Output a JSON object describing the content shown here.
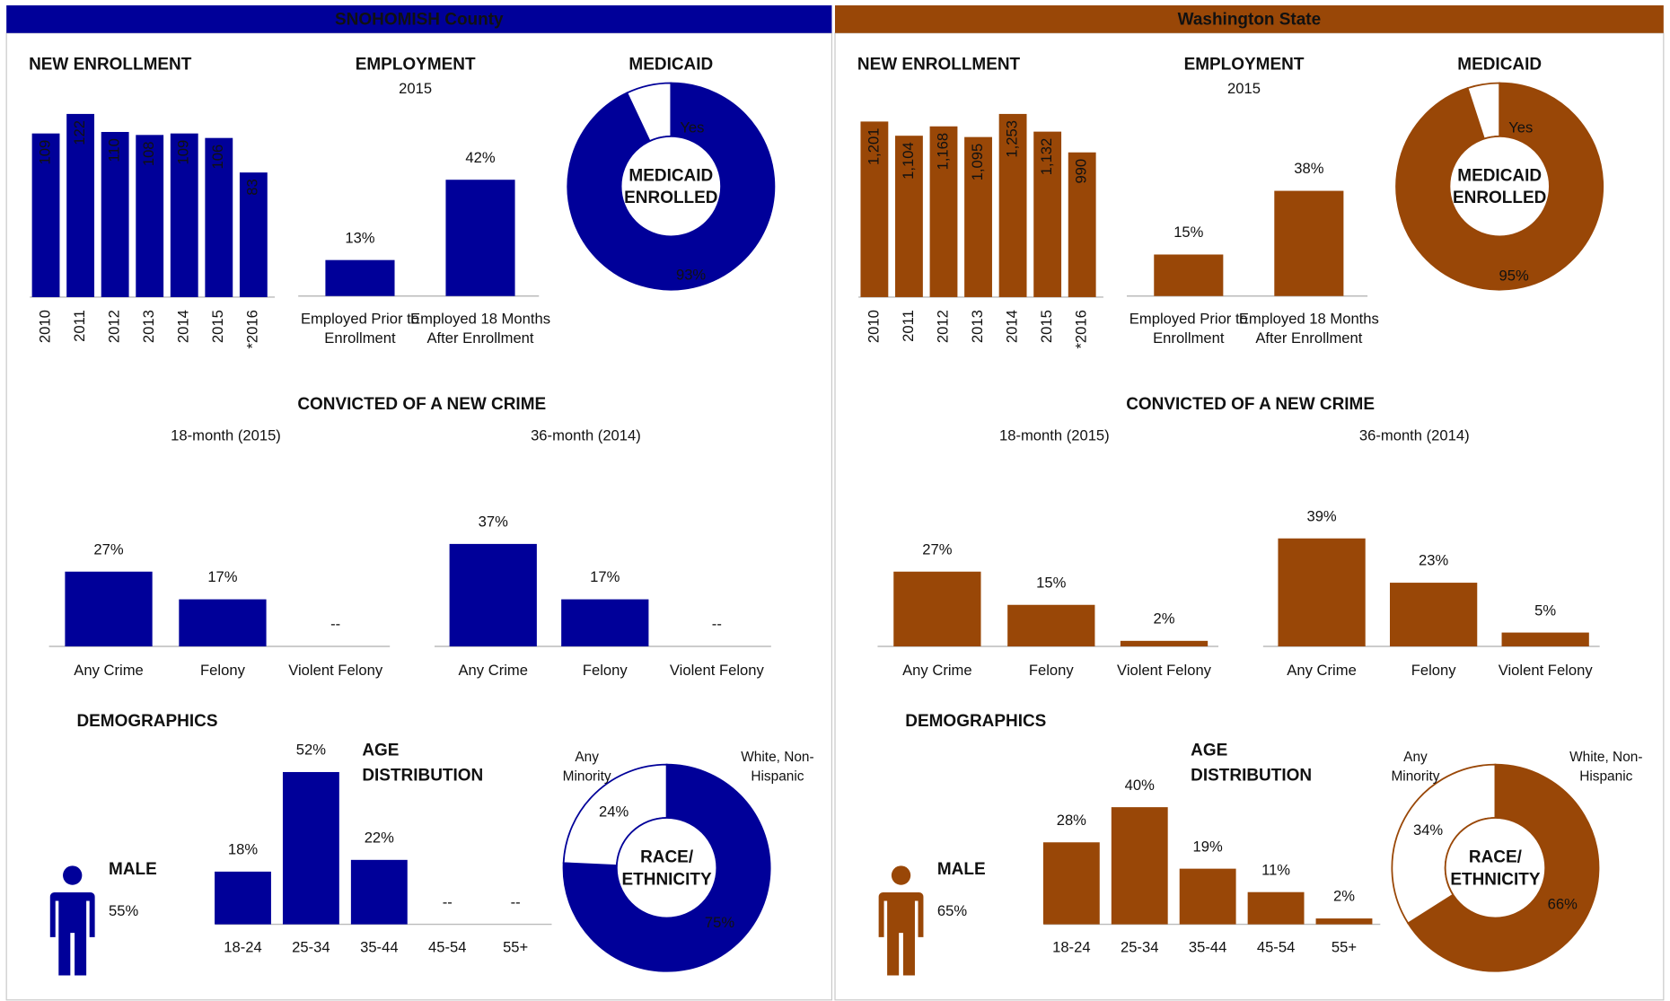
{
  "panels": [
    {
      "title": "SNOHOMISH County",
      "color": "#000099",
      "chart_data": [
        {
          "type": "bar",
          "title": "NEW ENROLLMENT",
          "categories": [
            "2010",
            "2011",
            "2012",
            "2013",
            "2014",
            "2015",
            "*2016"
          ],
          "values": [
            109,
            122,
            110,
            108,
            109,
            106,
            83
          ],
          "color": "#000099"
        },
        {
          "type": "bar",
          "title": "EMPLOYMENT",
          "subtitle": "2015",
          "categories": [
            "Employed Prior to Enrollment",
            "Employed 18 Months After Enrollment"
          ],
          "values": [
            13,
            42
          ],
          "value_labels": [
            "13%",
            "42%"
          ],
          "color": "#000099"
        },
        {
          "type": "donut",
          "title": "MEDICAID",
          "center_label": [
            "MEDICAID",
            "ENROLLED"
          ],
          "categories": [
            "Yes",
            null
          ],
          "values": [
            93,
            7
          ],
          "value_labels": [
            "93%",
            null
          ],
          "colors": [
            "#000099",
            "#ffffff"
          ]
        },
        {
          "type": "bar",
          "title": "CONVICTED OF A NEW CRIME",
          "subtitle": "18-month (2015)",
          "categories": [
            "Any Crime",
            "Felony",
            "Violent Felony"
          ],
          "values": [
            27,
            17,
            null
          ],
          "value_labels": [
            "27%",
            "17%",
            "--"
          ],
          "color": "#000099"
        },
        {
          "type": "bar",
          "subtitle": "36-month (2014)",
          "categories": [
            "Any Crime",
            "Felony",
            "Violent Felony"
          ],
          "values": [
            37,
            17,
            null
          ],
          "value_labels": [
            "37%",
            "17%",
            "--"
          ],
          "color": "#000099"
        },
        {
          "type": "stat",
          "title": "DEMOGRAPHICS",
          "label": "MALE",
          "value": "55%",
          "color": "#000099"
        },
        {
          "type": "bar",
          "title": [
            "AGE",
            "DISTRIBUTION"
          ],
          "categories": [
            "18-24",
            "25-34",
            "35-44",
            "45-54",
            "55+"
          ],
          "values": [
            18,
            52,
            22,
            null,
            null
          ],
          "value_labels": [
            "18%",
            "52%",
            "22%",
            "--",
            "--"
          ],
          "color": "#000099"
        },
        {
          "type": "donut",
          "center_label": [
            "RACE/",
            "ETHNICITY"
          ],
          "categories": [
            "White, Non-Hispanic",
            "Any Minority"
          ],
          "values": [
            75,
            24
          ],
          "value_labels": [
            "75%",
            "24%"
          ],
          "colors": [
            "#000099",
            "#ffffff"
          ]
        }
      ]
    },
    {
      "title": "Washington State",
      "color": "#994707",
      "chart_data": [
        {
          "type": "bar",
          "title": "NEW ENROLLMENT",
          "categories": [
            "2010",
            "2011",
            "2012",
            "2013",
            "2014",
            "2015",
            "*2016"
          ],
          "values": [
            1201,
            1104,
            1168,
            1095,
            1253,
            1132,
            990
          ],
          "value_labels": [
            "1,201",
            "1,104",
            "1,168",
            "1,095",
            "1,253",
            "1,132",
            "990"
          ],
          "color": "#994707"
        },
        {
          "type": "bar",
          "title": "EMPLOYMENT",
          "subtitle": "2015",
          "categories": [
            "Employed Prior to Enrollment",
            "Employed 18 Months After Enrollment"
          ],
          "values": [
            15,
            38
          ],
          "value_labels": [
            "15%",
            "38%"
          ],
          "color": "#994707"
        },
        {
          "type": "donut",
          "title": "MEDICAID",
          "center_label": [
            "MEDICAID",
            "ENROLLED"
          ],
          "categories": [
            "Yes",
            null
          ],
          "values": [
            95,
            5
          ],
          "value_labels": [
            "95%",
            null
          ],
          "colors": [
            "#994707",
            "#ffffff"
          ]
        },
        {
          "type": "bar",
          "title": "CONVICTED OF A NEW CRIME",
          "subtitle": "18-month (2015)",
          "categories": [
            "Any Crime",
            "Felony",
            "Violent Felony"
          ],
          "values": [
            27,
            15,
            2
          ],
          "value_labels": [
            "27%",
            "15%",
            "2%"
          ],
          "color": "#994707"
        },
        {
          "type": "bar",
          "subtitle": "36-month (2014)",
          "categories": [
            "Any Crime",
            "Felony",
            "Violent Felony"
          ],
          "values": [
            39,
            23,
            5
          ],
          "value_labels": [
            "39%",
            "23%",
            "5%"
          ],
          "color": "#994707"
        },
        {
          "type": "stat",
          "title": "DEMOGRAPHICS",
          "label": "MALE",
          "value": "65%",
          "color": "#994707"
        },
        {
          "type": "bar",
          "title": [
            "AGE",
            "DISTRIBUTION"
          ],
          "categories": [
            "18-24",
            "25-34",
            "35-44",
            "45-54",
            "55+"
          ],
          "values": [
            28,
            40,
            19,
            11,
            2
          ],
          "value_labels": [
            "28%",
            "40%",
            "19%",
            "11%",
            "2%"
          ],
          "color": "#994707"
        },
        {
          "type": "donut",
          "center_label": [
            "RACE/",
            "ETHNICITY"
          ],
          "categories": [
            "White, Non-Hispanic",
            "Any Minority"
          ],
          "values": [
            66,
            34
          ],
          "value_labels": [
            "66%",
            "34%"
          ],
          "colors": [
            "#994707",
            "#ffffff"
          ]
        }
      ]
    }
  ]
}
